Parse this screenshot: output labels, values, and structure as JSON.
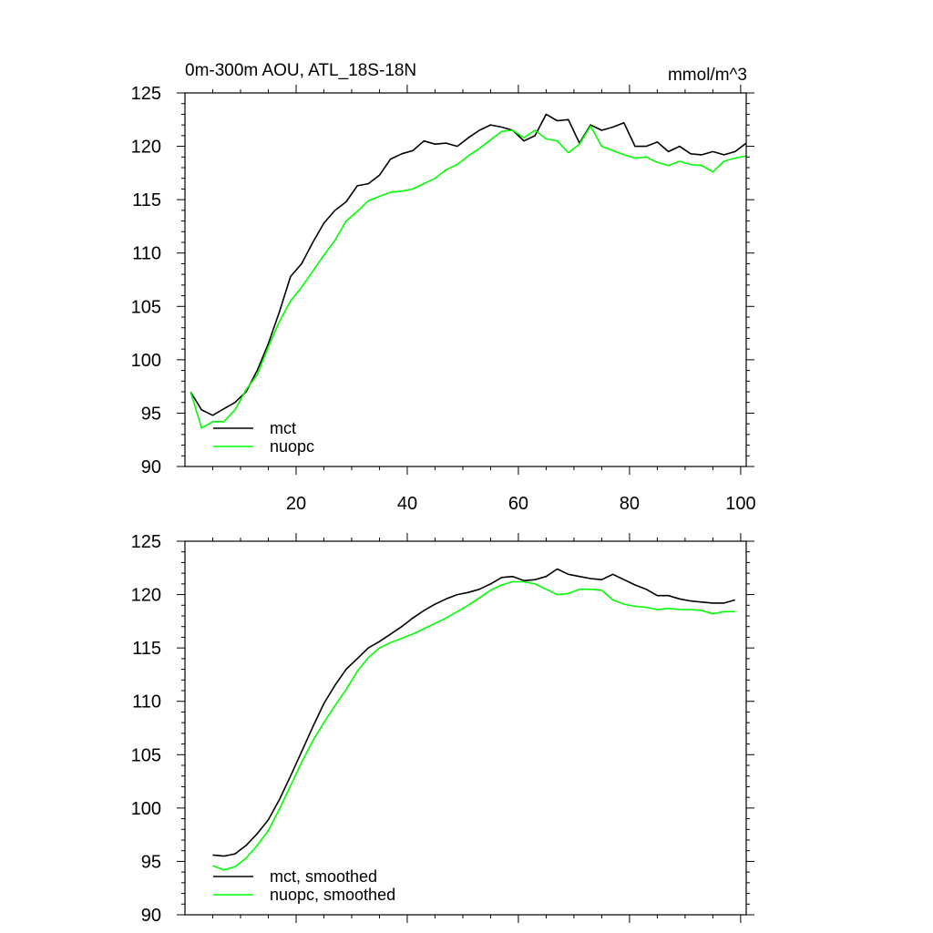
{
  "chart_data": [
    {
      "type": "line",
      "title": "0m-300m AOU, ATL_18S-18N",
      "units": "mmol/m^3",
      "xlabel": "",
      "ylabel": "",
      "xlim": [
        0,
        101
      ],
      "ylim": [
        90,
        125
      ],
      "x_ticks": [
        "20",
        "40",
        "60",
        "80",
        "100"
      ],
      "y_ticks": [
        "90",
        "95",
        "100",
        "105",
        "110",
        "115",
        "120",
        "125"
      ],
      "legend_position": "bottom-left",
      "series": [
        {
          "name": "mct",
          "color": "#000000",
          "x": [
            1,
            3,
            5,
            7,
            9,
            11,
            13,
            15,
            17,
            19,
            21,
            23,
            25,
            27,
            29,
            31,
            33,
            35,
            37,
            39,
            41,
            43,
            45,
            47,
            49,
            51,
            53,
            55,
            57,
            59,
            61,
            63,
            65,
            67,
            69,
            71,
            73,
            75,
            77,
            79,
            81,
            83,
            85,
            87,
            89,
            91,
            93,
            95,
            97,
            99,
            101
          ],
          "values": [
            97.0,
            95.3,
            94.8,
            95.4,
            96.0,
            97.0,
            99.0,
            101.5,
            104.5,
            107.8,
            109.0,
            111.0,
            112.8,
            114.0,
            114.8,
            116.3,
            116.5,
            117.3,
            118.8,
            119.3,
            119.6,
            120.5,
            120.2,
            120.3,
            120.0,
            120.8,
            121.5,
            122.0,
            121.8,
            121.5,
            120.5,
            121.0,
            123.0,
            122.4,
            122.5,
            120.3,
            122.0,
            121.5,
            121.8,
            122.2,
            120.0,
            120.0,
            120.4,
            119.5,
            120.0,
            119.3,
            119.2,
            119.5,
            119.2,
            119.5,
            120.3
          ]
        },
        {
          "name": "nuopc",
          "color": "#00ff00",
          "x": [
            1,
            3,
            5,
            7,
            9,
            11,
            13,
            15,
            17,
            19,
            21,
            23,
            25,
            27,
            29,
            31,
            33,
            35,
            37,
            39,
            41,
            43,
            45,
            47,
            49,
            51,
            53,
            55,
            57,
            59,
            61,
            63,
            65,
            67,
            69,
            71,
            73,
            75,
            77,
            79,
            81,
            83,
            85,
            87,
            89,
            91,
            93,
            95,
            97,
            99,
            101
          ],
          "values": [
            97.0,
            93.6,
            94.2,
            94.2,
            95.3,
            97.2,
            98.6,
            101.2,
            103.6,
            105.5,
            106.8,
            108.3,
            109.8,
            111.2,
            113.0,
            113.9,
            114.9,
            115.3,
            115.7,
            115.8,
            116.0,
            116.5,
            117.0,
            117.8,
            118.3,
            119.1,
            119.8,
            120.6,
            121.4,
            121.5,
            120.8,
            121.5,
            120.7,
            120.5,
            119.4,
            120.2,
            121.9,
            120.0,
            119.6,
            119.2,
            118.9,
            119.0,
            118.5,
            118.2,
            118.6,
            118.3,
            118.2,
            117.6,
            118.6,
            118.9,
            119.1
          ]
        }
      ]
    },
    {
      "type": "line",
      "title": "",
      "xlabel": "",
      "ylabel": "",
      "xlim": [
        0,
        101
      ],
      "ylim": [
        90,
        125
      ],
      "y_ticks": [
        "90",
        "95",
        "100",
        "105",
        "110",
        "115",
        "120",
        "125"
      ],
      "legend_position": "bottom-left",
      "series": [
        {
          "name": "mct, smoothed",
          "color": "#000000",
          "x": [
            5,
            7,
            9,
            11,
            13,
            15,
            17,
            19,
            21,
            23,
            25,
            27,
            29,
            31,
            33,
            35,
            37,
            39,
            41,
            43,
            45,
            47,
            49,
            51,
            53,
            55,
            57,
            59,
            61,
            63,
            65,
            67,
            69,
            71,
            73,
            75,
            77,
            79,
            81,
            83,
            85,
            87,
            89,
            91,
            93,
            95,
            97,
            99
          ],
          "values": [
            95.6,
            95.5,
            95.7,
            96.5,
            97.6,
            98.9,
            100.8,
            103.0,
            105.3,
            107.6,
            109.8,
            111.5,
            113.0,
            114.0,
            115.0,
            115.6,
            116.3,
            117.0,
            117.8,
            118.5,
            119.1,
            119.6,
            120.0,
            120.2,
            120.5,
            121.0,
            121.6,
            121.7,
            121.3,
            121.4,
            121.7,
            122.4,
            121.9,
            121.7,
            121.5,
            121.4,
            121.9,
            121.4,
            120.9,
            120.5,
            119.9,
            119.9,
            119.6,
            119.4,
            119.3,
            119.2,
            119.2,
            119.5
          ]
        },
        {
          "name": "nuopc, smoothed",
          "color": "#00ff00",
          "x": [
            5,
            7,
            9,
            11,
            13,
            15,
            17,
            19,
            21,
            23,
            25,
            27,
            29,
            31,
            33,
            35,
            37,
            39,
            41,
            43,
            45,
            47,
            49,
            51,
            53,
            55,
            57,
            59,
            61,
            63,
            65,
            67,
            69,
            71,
            73,
            75,
            77,
            79,
            81,
            83,
            85,
            87,
            89,
            91,
            93,
            95,
            97,
            99
          ],
          "values": [
            94.6,
            94.2,
            94.5,
            95.3,
            96.5,
            97.9,
            99.9,
            102.1,
            104.3,
            106.3,
            108.0,
            109.6,
            111.1,
            112.8,
            114.1,
            115.0,
            115.5,
            115.9,
            116.3,
            116.8,
            117.3,
            117.8,
            118.4,
            119.0,
            119.7,
            120.4,
            120.9,
            121.2,
            121.2,
            121.0,
            120.5,
            120.0,
            120.1,
            120.5,
            120.5,
            120.4,
            119.5,
            119.1,
            118.9,
            118.8,
            118.6,
            118.7,
            118.6,
            118.6,
            118.5,
            118.2,
            118.4,
            118.4
          ]
        }
      ]
    }
  ]
}
